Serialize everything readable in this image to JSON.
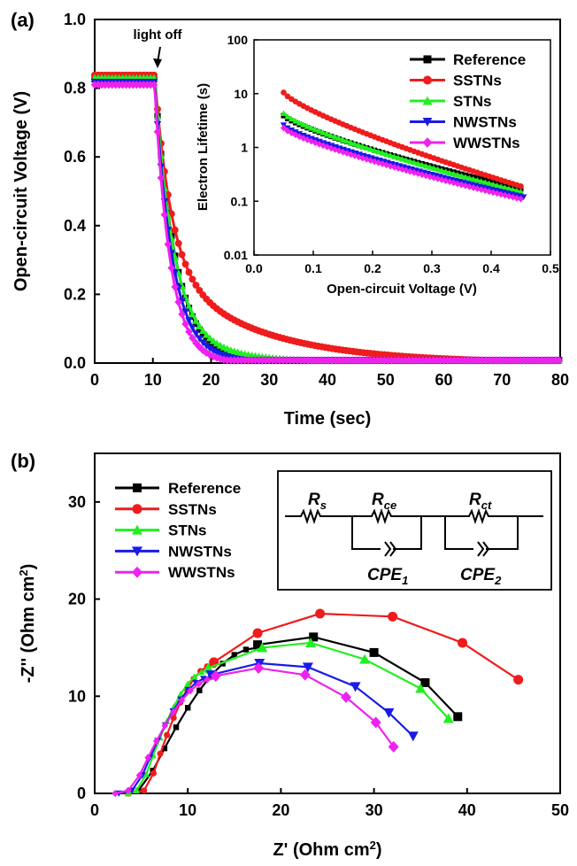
{
  "chart_data": [
    {
      "panel_label": "(a)",
      "type": "line",
      "xlabel": "Time (sec)",
      "ylabel": "Open-circuit Voltage (V)",
      "xlim": [
        0,
        80
      ],
      "ylim": [
        0,
        1.0
      ],
      "xticks": [
        "0",
        "10",
        "20",
        "30",
        "40",
        "50",
        "60",
        "70",
        "80"
      ],
      "yticks": [
        "0.0",
        "0.2",
        "0.4",
        "0.6",
        "0.8",
        "1.0"
      ],
      "annotation": "light off",
      "annotation_x": 10.5,
      "annotation_y": 0.84,
      "series": [
        {
          "name": "Reference",
          "color": "#000000",
          "marker": "square",
          "v0": 0.826,
          "tau": 3.6,
          "tail": 0.0
        },
        {
          "name": "SSTNs",
          "color": "#ee1c1c",
          "marker": "circle",
          "v0": 0.838,
          "tau": 2.8,
          "tail": 0.34,
          "tau2": 16
        },
        {
          "name": "STNs",
          "color": "#22ee22",
          "marker": "triangle-up",
          "v0": 0.83,
          "tau": 3.2,
          "tail": 0.09,
          "tau2": 12
        },
        {
          "name": "NWSTNs",
          "color": "#1a1ae6",
          "marker": "triangle-down",
          "v0": 0.818,
          "tau": 3.0,
          "tail": 0.03,
          "tau2": 9
        },
        {
          "name": "WWSTNs",
          "color": "#ee22ee",
          "marker": "diamond",
          "v0": 0.81,
          "tau": 2.7,
          "tail": 0.0
        }
      ],
      "legend_position": "top-right"
    },
    {
      "panel_label": "inset",
      "type": "line",
      "xlabel": "Open-circuit Voltage (V)",
      "ylabel": "Electron Lifetime (s)",
      "xlim": [
        0,
        0.5
      ],
      "ylim": [
        0.01,
        100
      ],
      "yscale": "log",
      "xticks": [
        "0.0",
        "0.1",
        "0.2",
        "0.3",
        "0.4",
        "0.5"
      ],
      "yticks": [
        "0.01",
        "0.1",
        "1",
        "10",
        "100"
      ],
      "series": [
        {
          "name": "Reference",
          "color": "#000000",
          "marker": "square",
          "start": [
            0.05,
            3.9
          ],
          "end": [
            0.45,
            0.17
          ]
        },
        {
          "name": "SSTNs",
          "color": "#ee1c1c",
          "marker": "circle",
          "start": [
            0.05,
            10.5
          ],
          "end": [
            0.45,
            0.19
          ]
        },
        {
          "name": "STNs",
          "color": "#22ee22",
          "marker": "triangle-up",
          "start": [
            0.05,
            4.3
          ],
          "end": [
            0.45,
            0.15
          ]
        },
        {
          "name": "NWSTNs",
          "color": "#1a1ae6",
          "marker": "triangle-down",
          "start": [
            0.05,
            2.6
          ],
          "end": [
            0.455,
            0.12
          ]
        },
        {
          "name": "WWSTNs",
          "color": "#ee22ee",
          "marker": "diamond",
          "start": [
            0.05,
            2.3
          ],
          "end": [
            0.45,
            0.11
          ]
        }
      ],
      "legend_position": "top-right"
    },
    {
      "panel_label": "(b)",
      "type": "scatter",
      "xlabel": "Z' (Ohm cm²)",
      "ylabel": "-Z'' (Ohm cm²)",
      "xlim": [
        0,
        50
      ],
      "ylim": [
        0,
        35
      ],
      "xticks": [
        "0",
        "10",
        "20",
        "30",
        "40",
        "50"
      ],
      "yticks": [
        "0",
        "10",
        "20",
        "30"
      ],
      "series": [
        {
          "name": "Reference",
          "color": "#000000",
          "marker": "square",
          "points": [
            [
              17.5,
              15.3
            ],
            [
              23.5,
              16.1
            ],
            [
              30.0,
              14.5
            ],
            [
              35.5,
              11.4
            ],
            [
              39.0,
              7.9
            ]
          ]
        },
        {
          "name": "SSTNs",
          "color": "#ee1c1c",
          "marker": "circle",
          "points": [
            [
              12.8,
              13.5
            ],
            [
              17.5,
              16.5
            ],
            [
              24.2,
              18.5
            ],
            [
              32.0,
              18.2
            ],
            [
              39.5,
              15.5
            ],
            [
              45.5,
              11.7
            ]
          ]
        },
        {
          "name": "STNs",
          "color": "#22ee22",
          "marker": "triangle-up",
          "points": [
            [
              12.2,
              12.9
            ],
            [
              18.0,
              15.0
            ],
            [
              23.2,
              15.5
            ],
            [
              29.0,
              13.8
            ],
            [
              35.0,
              10.8
            ],
            [
              38.0,
              7.7
            ]
          ]
        },
        {
          "name": "NWSTNs",
          "color": "#1a1ae6",
          "marker": "triangle-down",
          "points": [
            [
              12.5,
              12.2
            ],
            [
              17.7,
              13.4
            ],
            [
              22.9,
              13.0
            ],
            [
              28.0,
              11.0
            ],
            [
              31.6,
              8.3
            ],
            [
              34.2,
              5.9
            ]
          ]
        },
        {
          "name": "WWSTNs",
          "color": "#ee22ee",
          "marker": "diamond",
          "points": [
            [
              13.0,
              12.1
            ],
            [
              17.6,
              12.9
            ],
            [
              22.6,
              12.2
            ],
            [
              27.0,
              9.9
            ],
            [
              30.2,
              7.3
            ],
            [
              32.1,
              4.8
            ]
          ]
        }
      ],
      "low_freq_start": {
        "Reference": 5.0,
        "SSTNs": 5.6,
        "STNs": 4.8,
        "NWSTNs": 4.3,
        "WWSTNs": 3.9
      },
      "legend_position": "top-left",
      "circuit_labels": {
        "r1": "R",
        "r1_sub": "s",
        "r2": "R",
        "r2_sub": "ce",
        "r3": "R",
        "r3_sub": "ct",
        "cpe1": "CPE",
        "cpe1_sub": "1",
        "cpe2": "CPE",
        "cpe2_sub": "2"
      }
    }
  ]
}
